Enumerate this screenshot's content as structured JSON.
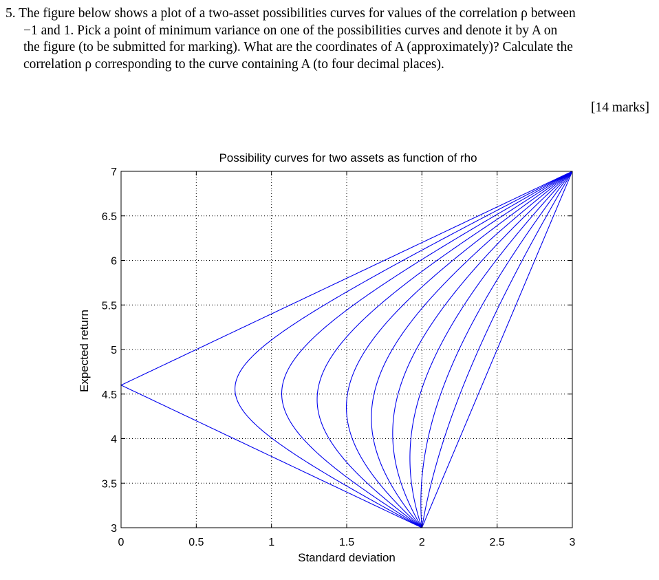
{
  "question": {
    "number": "5.",
    "lines": [
      "The figure below shows a plot of a two-asset possibilities curves for values of the correlation ρ between",
      "−1 and 1. Pick a point of minimum variance on one of the possibilities curves and denote it by A on",
      "the figure (to be submitted for marking). What are the coordinates of A (approximately)? Calculate the",
      "correlation ρ corresponding to the curve containing A (to four decimal places)."
    ]
  },
  "marks": "[14 marks]",
  "chart_data": {
    "type": "line",
    "title": "Possibility curves for two assets as function of rho",
    "xlabel": "Standard deviation",
    "ylabel": "Expected return",
    "xlim": [
      0,
      3
    ],
    "ylim": [
      3,
      7
    ],
    "xticks": [
      "0",
      "0.5",
      "1",
      "1.5",
      "2",
      "2.5",
      "3"
    ],
    "yticks": [
      "3",
      "3.5",
      "4",
      "4.5",
      "5",
      "5.5",
      "6",
      "6.5",
      "7"
    ],
    "grid": true,
    "line_color": "#0000ee",
    "asset1": {
      "sd": 2,
      "return": 3
    },
    "asset2": {
      "sd": 3,
      "return": 7
    },
    "rho": [
      -1,
      -0.8,
      -0.6,
      -0.4,
      -0.2,
      0,
      0.2,
      0.4,
      0.6,
      0.8,
      1
    ]
  }
}
